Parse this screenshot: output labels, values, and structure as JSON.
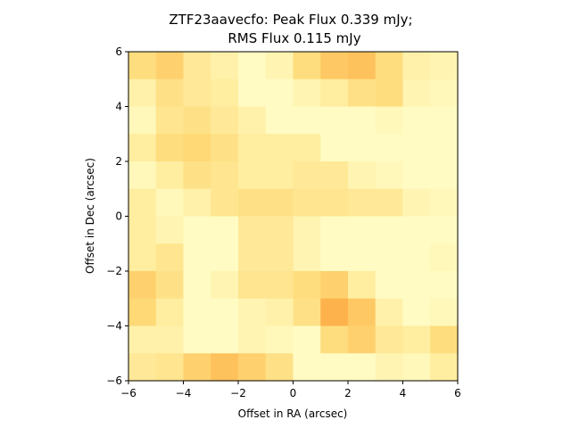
{
  "chart_data": {
    "type": "heatmap",
    "title_line1": "ZTF23aavecfo: Peak Flux 0.339 mJy;",
    "title_line2": "RMS Flux 0.115 mJy",
    "xlabel": "Offset in RA (arcsec)",
    "ylabel": "Offset in Dec (arcsec)",
    "xlim": [
      -6,
      6
    ],
    "ylim": [
      -6,
      6
    ],
    "xticks": [
      -6,
      -4,
      -2,
      0,
      2,
      4,
      6
    ],
    "yticks": [
      -6,
      -4,
      -2,
      0,
      2,
      4,
      6
    ],
    "xtick_labels": [
      "−6",
      "−4",
      "−2",
      "0",
      "2",
      "4",
      "6"
    ],
    "ytick_labels": [
      "−6",
      "−4",
      "−2",
      "0",
      "2",
      "4",
      "6"
    ],
    "colormap": [
      "#ffffcc",
      "#ffeda0",
      "#fed976",
      "#feb24c",
      "#fd8d3c"
    ],
    "grid": false,
    "rows_top_to_bottom": [
      [
        0.45,
        0.55,
        0.3,
        0.2,
        0.05,
        0.15,
        0.45,
        0.6,
        0.65,
        0.45,
        0.2,
        0.15
      ],
      [
        0.2,
        0.4,
        0.3,
        0.25,
        0.05,
        0.05,
        0.15,
        0.25,
        0.4,
        0.45,
        0.15,
        0.1
      ],
      [
        0.1,
        0.35,
        0.4,
        0.3,
        0.2,
        0.05,
        0.05,
        0.05,
        0.05,
        0.1,
        0.05,
        0.05
      ],
      [
        0.25,
        0.45,
        0.5,
        0.4,
        0.25,
        0.25,
        0.25,
        0.05,
        0.05,
        0.05,
        0.05,
        0.05
      ],
      [
        0.1,
        0.25,
        0.4,
        0.35,
        0.25,
        0.25,
        0.3,
        0.3,
        0.15,
        0.1,
        0.05,
        0.05
      ],
      [
        0.25,
        0.1,
        0.2,
        0.35,
        0.4,
        0.4,
        0.35,
        0.35,
        0.3,
        0.3,
        0.15,
        0.1
      ],
      [
        0.25,
        0.15,
        0.05,
        0.05,
        0.3,
        0.3,
        0.15,
        0.05,
        0.05,
        0.05,
        0.05,
        0.05
      ],
      [
        0.25,
        0.35,
        0.05,
        0.05,
        0.3,
        0.3,
        0.15,
        0.05,
        0.05,
        0.05,
        0.05,
        0.1
      ],
      [
        0.55,
        0.4,
        0.05,
        0.15,
        0.35,
        0.35,
        0.45,
        0.55,
        0.25,
        0.05,
        0.05,
        0.05
      ],
      [
        0.5,
        0.25,
        0.05,
        0.05,
        0.15,
        0.2,
        0.4,
        0.75,
        0.6,
        0.2,
        0.05,
        0.1
      ],
      [
        0.2,
        0.2,
        0.05,
        0.05,
        0.15,
        0.1,
        0.05,
        0.45,
        0.55,
        0.3,
        0.25,
        0.45
      ],
      [
        0.3,
        0.35,
        0.55,
        0.65,
        0.55,
        0.4,
        0.05,
        0.05,
        0.05,
        0.15,
        0.1,
        0.25
      ]
    ]
  }
}
